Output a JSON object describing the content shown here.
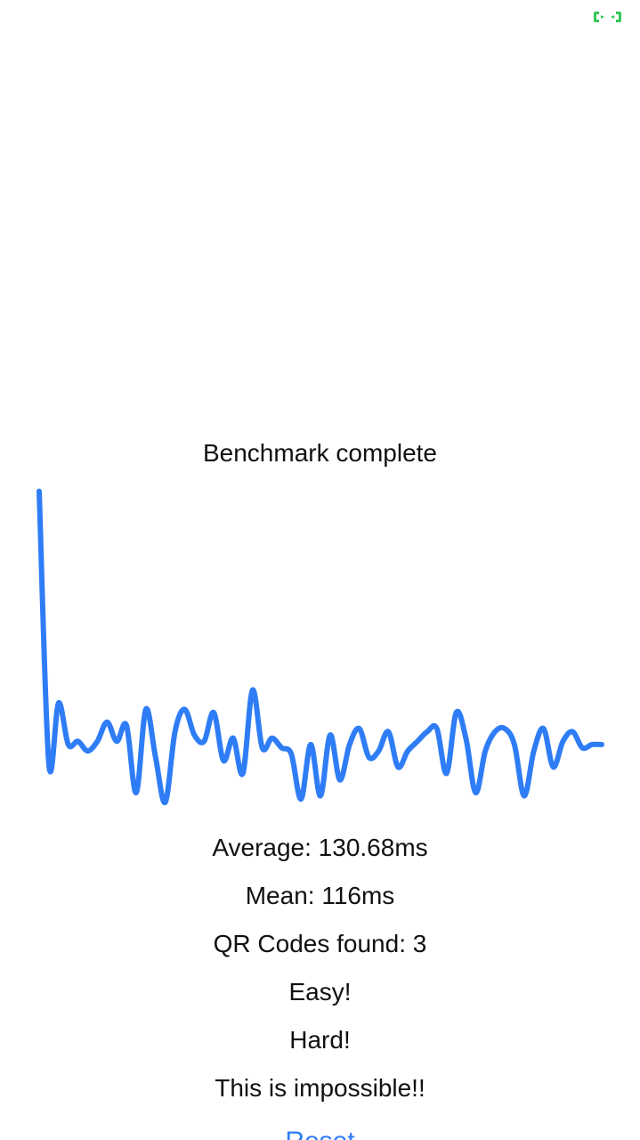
{
  "status": {
    "indicator_icon": "green-brackets-icon",
    "indicator_color": "#34c759"
  },
  "title": "Benchmark complete",
  "chart_data": {
    "type": "line",
    "title": "",
    "xlabel": "",
    "ylabel": "",
    "grid": false,
    "color": "#2f7df6",
    "y_relative": [
      0.99,
      0.14,
      0.33,
      0.2,
      0.21,
      0.18,
      0.21,
      0.27,
      0.21,
      0.26,
      0.05,
      0.31,
      0.16,
      0.02,
      0.24,
      0.31,
      0.23,
      0.21,
      0.3,
      0.15,
      0.22,
      0.11,
      0.37,
      0.19,
      0.22,
      0.19,
      0.17,
      0.03,
      0.2,
      0.04,
      0.23,
      0.09,
      0.2,
      0.25,
      0.16,
      0.18,
      0.24,
      0.13,
      0.18,
      0.21,
      0.24,
      0.25,
      0.11,
      0.3,
      0.22,
      0.05,
      0.18,
      0.24,
      0.25,
      0.2,
      0.04,
      0.18,
      0.25,
      0.13,
      0.21,
      0.24,
      0.19,
      0.2,
      0.2
    ]
  },
  "stats": {
    "average": "Average: 130.68ms",
    "mean": "Mean: 116ms",
    "qr_found": "QR Codes found: 3",
    "easy": "Easy!",
    "hard": "Hard!",
    "impossible": "This is impossible!!"
  },
  "reset_label": "Reset"
}
